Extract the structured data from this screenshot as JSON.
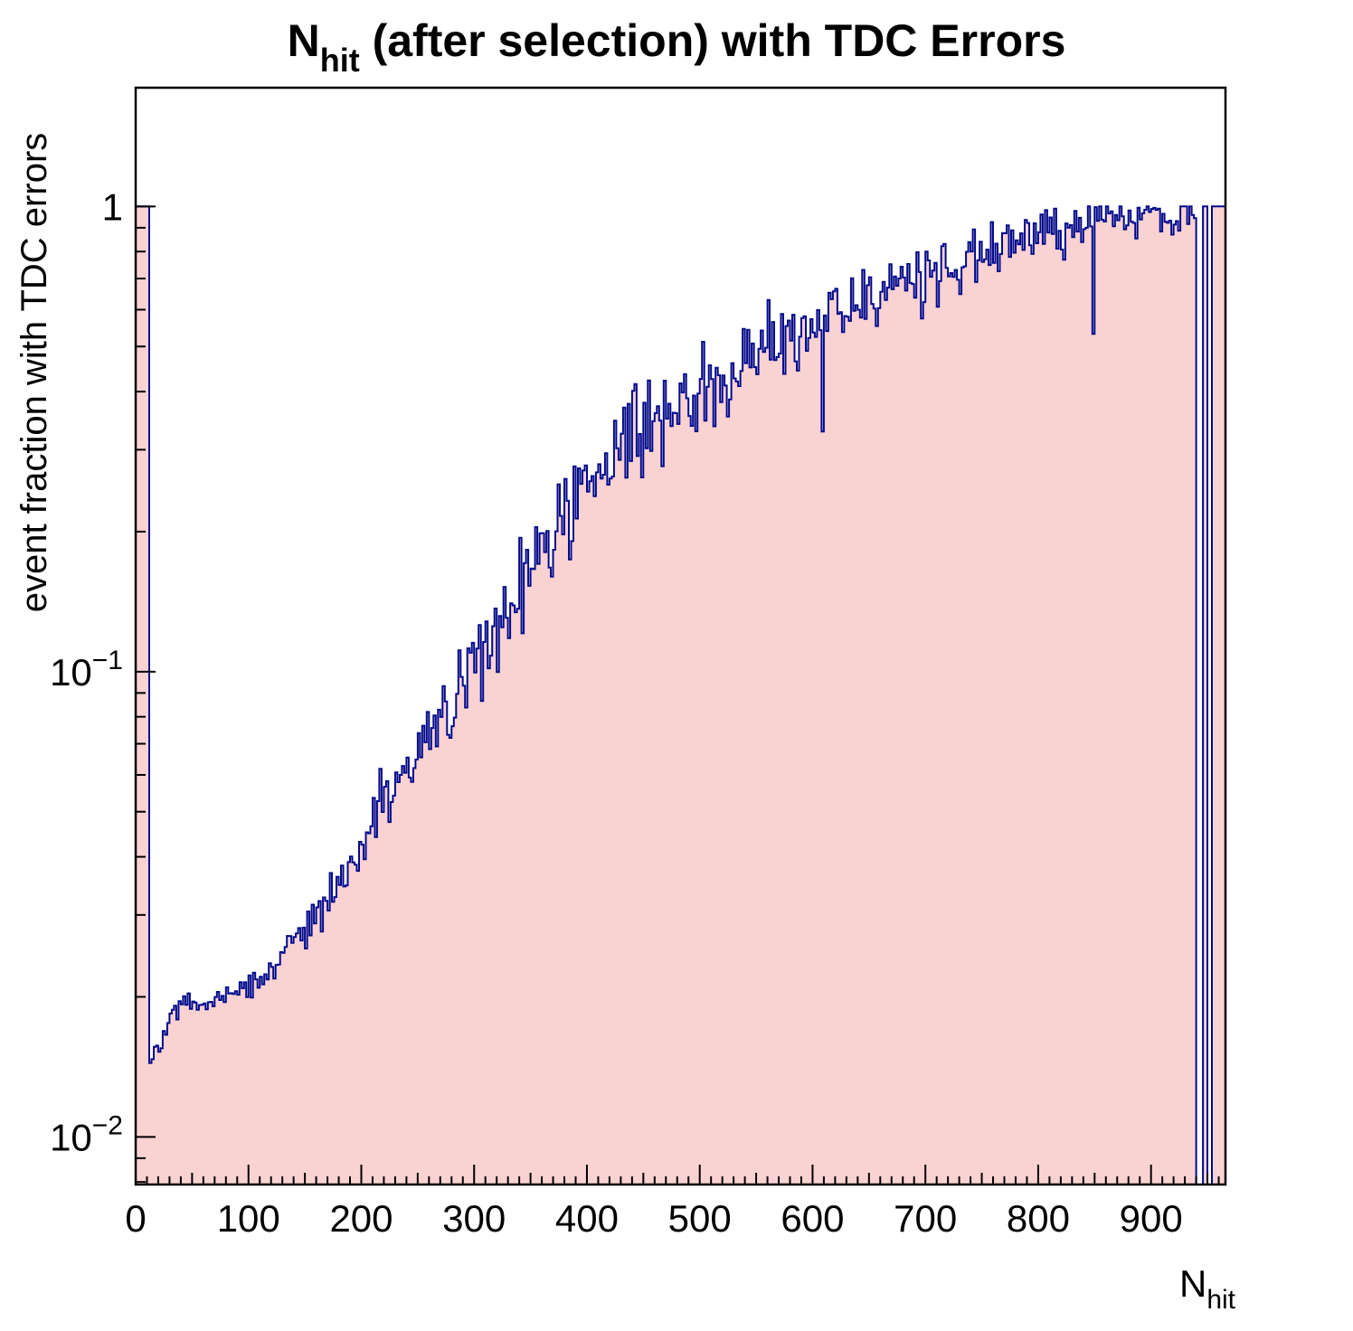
{
  "title": {
    "prefix": "N",
    "sub": "hit",
    "suffix": " (after selection) with TDC Errors"
  },
  "x_axis": {
    "title_prefix": "N",
    "title_sub": "hit",
    "min": 0,
    "max": 966,
    "major_tick_step": 100,
    "minor_tick_step": 10,
    "major_tick_labels": [
      "0",
      "100",
      "200",
      "300",
      "400",
      "500",
      "600",
      "700",
      "800",
      "900"
    ]
  },
  "y_axis": {
    "title": "event fraction with TDC errors",
    "scale": "log",
    "min": 0.0079,
    "max": 1.8,
    "major_ticks": [
      {
        "value": 1,
        "base": "1",
        "exp": ""
      },
      {
        "value": 0.1,
        "base": "10",
        "exp": "−1"
      },
      {
        "value": 0.01,
        "base": "10",
        "exp": "−2"
      }
    ]
  },
  "chart_data": {
    "type": "area",
    "title": "N_hit (after selection) with TDC Errors",
    "xlabel": "N_hit",
    "ylabel": "event fraction with TDC errors",
    "x_range": [
      0,
      966
    ],
    "y_range": [
      0.0079,
      1.8
    ],
    "y_scale": "log",
    "grid": false,
    "legend": "none",
    "bin_width": 2,
    "spike": {
      "x_end": 12,
      "y": 1.0
    },
    "control_points": [
      [
        14,
        0.014
      ],
      [
        18,
        0.016
      ],
      [
        22,
        0.0155
      ],
      [
        26,
        0.017
      ],
      [
        30,
        0.0185
      ],
      [
        40,
        0.019
      ],
      [
        50,
        0.0195
      ],
      [
        60,
        0.019
      ],
      [
        70,
        0.02
      ],
      [
        80,
        0.0205
      ],
      [
        90,
        0.02
      ],
      [
        100,
        0.021
      ],
      [
        110,
        0.022
      ],
      [
        120,
        0.023
      ],
      [
        130,
        0.024
      ],
      [
        140,
        0.026
      ],
      [
        150,
        0.028
      ],
      [
        160,
        0.03
      ],
      [
        170,
        0.032
      ],
      [
        180,
        0.035
      ],
      [
        190,
        0.038
      ],
      [
        200,
        0.042
      ],
      [
        210,
        0.046
      ],
      [
        220,
        0.05
      ],
      [
        230,
        0.055
      ],
      [
        240,
        0.06
      ],
      [
        250,
        0.066
      ],
      [
        260,
        0.072
      ],
      [
        270,
        0.078
      ],
      [
        280,
        0.085
      ],
      [
        290,
        0.095
      ],
      [
        300,
        0.105
      ],
      [
        310,
        0.115
      ],
      [
        320,
        0.125
      ],
      [
        330,
        0.135
      ],
      [
        340,
        0.15
      ],
      [
        350,
        0.165
      ],
      [
        360,
        0.18
      ],
      [
        370,
        0.195
      ],
      [
        380,
        0.21
      ],
      [
        390,
        0.225
      ],
      [
        400,
        0.24
      ],
      [
        410,
        0.26
      ],
      [
        420,
        0.28
      ],
      [
        430,
        0.3
      ],
      [
        440,
        0.32
      ],
      [
        450,
        0.34
      ],
      [
        460,
        0.355
      ],
      [
        470,
        0.37
      ],
      [
        480,
        0.38
      ],
      [
        490,
        0.39
      ],
      [
        500,
        0.4
      ],
      [
        520,
        0.42
      ],
      [
        540,
        0.46
      ],
      [
        560,
        0.5
      ],
      [
        580,
        0.53
      ],
      [
        600,
        0.56
      ],
      [
        620,
        0.59
      ],
      [
        640,
        0.62
      ],
      [
        660,
        0.65
      ],
      [
        680,
        0.68
      ],
      [
        700,
        0.7
      ],
      [
        720,
        0.74
      ],
      [
        740,
        0.78
      ],
      [
        760,
        0.81
      ],
      [
        780,
        0.85
      ],
      [
        800,
        0.88
      ],
      [
        820,
        0.9
      ],
      [
        840,
        0.92
      ],
      [
        860,
        0.93
      ],
      [
        880,
        0.94
      ],
      [
        900,
        0.95
      ],
      [
        920,
        0.96
      ],
      [
        941,
        0.97
      ]
    ],
    "tail_bins": [
      {
        "x0": 941,
        "x1": 947,
        "y": null
      },
      {
        "x0": 947,
        "x1": 951,
        "y": 1.0
      },
      {
        "x0": 951,
        "x1": 955,
        "y": null
      },
      {
        "x0": 955,
        "x1": 966,
        "y": 1.0
      }
    ],
    "noise": {
      "seed": 42,
      "base_sigma": 0.013,
      "growth": 0.00019,
      "max_sigma": 0.06,
      "top_damping": 0.6,
      "dip_prob": 0.015,
      "dip_depth": 0.14
    },
    "fill_color": "#fbd2d2",
    "line_color": "#000a8c",
    "frame_color": "#000000"
  }
}
